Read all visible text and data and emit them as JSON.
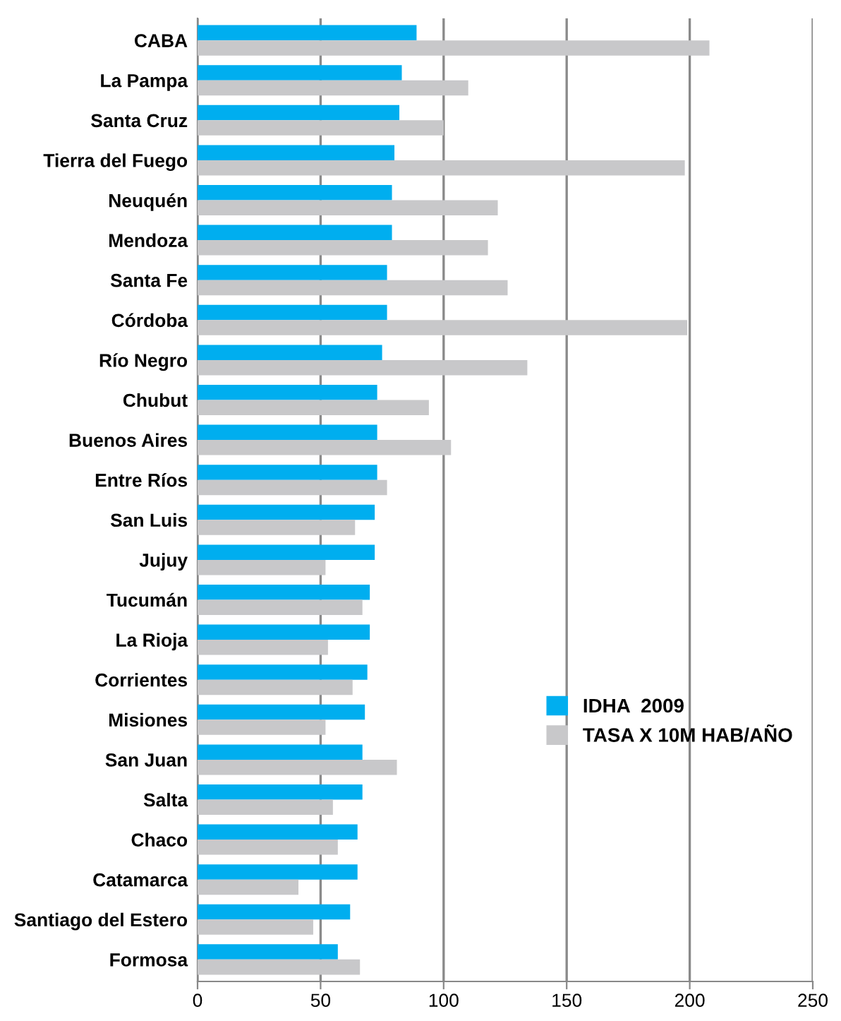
{
  "chart_data": {
    "type": "bar",
    "orientation": "horizontal",
    "categories": [
      "CABA",
      "La Pampa",
      "Santa Cruz",
      "Tierra del Fuego",
      "Neuquén",
      "Mendoza",
      "Santa Fe",
      "Córdoba",
      "Río Negro",
      "Chubut",
      "Buenos Aires",
      "Entre Ríos",
      "San Luis",
      "Jujuy",
      "Tucumán",
      "La Rioja",
      "Corrientes",
      "Misiones",
      "San Juan",
      "Salta",
      "Chaco",
      "Catamarca",
      "Santiago del Estero",
      "Formosa"
    ],
    "series": [
      {
        "name": "IDHA  2009",
        "color": "#00aeef",
        "values": [
          89,
          83,
          82,
          80,
          79,
          79,
          77,
          77,
          75,
          73,
          73,
          73,
          72,
          72,
          70,
          70,
          69,
          68,
          67,
          67,
          65,
          65,
          62,
          57
        ]
      },
      {
        "name": "TASA X 10M HAB/AÑO",
        "color": "#c8c8ca",
        "values": [
          208,
          110,
          100,
          198,
          122,
          118,
          126,
          199,
          134,
          94,
          103,
          77,
          64,
          52,
          67,
          53,
          63,
          52,
          81,
          55,
          57,
          41,
          47,
          66
        ]
      }
    ],
    "xlim": [
      0,
      250
    ],
    "xticks": [
      0,
      50,
      100,
      150,
      200,
      250
    ],
    "grid": "x",
    "legend": "right"
  }
}
